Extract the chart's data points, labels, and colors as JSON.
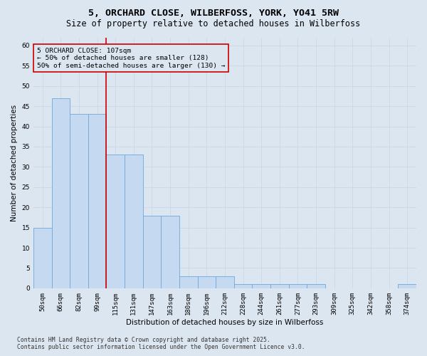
{
  "title_line1": "5, ORCHARD CLOSE, WILBERFOSS, YORK, YO41 5RW",
  "title_line2": "Size of property relative to detached houses in Wilberfoss",
  "xlabel": "Distribution of detached houses by size in Wilberfoss",
  "ylabel": "Number of detached properties",
  "categories": [
    "50sqm",
    "66sqm",
    "82sqm",
    "99sqm",
    "115sqm",
    "131sqm",
    "147sqm",
    "163sqm",
    "180sqm",
    "196sqm",
    "212sqm",
    "228sqm",
    "244sqm",
    "261sqm",
    "277sqm",
    "293sqm",
    "309sqm",
    "325sqm",
    "342sqm",
    "358sqm",
    "374sqm"
  ],
  "values": [
    15,
    47,
    43,
    43,
    33,
    33,
    18,
    18,
    3,
    3,
    3,
    1,
    1,
    1,
    1,
    1,
    0,
    0,
    0,
    0,
    1
  ],
  "bar_color": "#c5d9f1",
  "bar_edge_color": "#6fa8dc",
  "grid_color": "#c8d8eb",
  "background_color": "#dce6f1",
  "vline_color": "#cc0000",
  "vline_x": 3.5,
  "annotation_text": "5 ORCHARD CLOSE: 107sqm\n← 50% of detached houses are smaller (128)\n50% of semi-detached houses are larger (130) →",
  "annotation_box_color": "#cc0000",
  "footer_text": "Contains HM Land Registry data © Crown copyright and database right 2025.\nContains public sector information licensed under the Open Government Licence v3.0.",
  "ylim": [
    0,
    62
  ],
  "yticks": [
    0,
    5,
    10,
    15,
    20,
    25,
    30,
    35,
    40,
    45,
    50,
    55,
    60
  ],
  "title_fontsize": 9.5,
  "subtitle_fontsize": 8.5,
  "axis_label_fontsize": 7.5,
  "tick_fontsize": 6.5,
  "annotation_fontsize": 6.8,
  "footer_fontsize": 5.8
}
